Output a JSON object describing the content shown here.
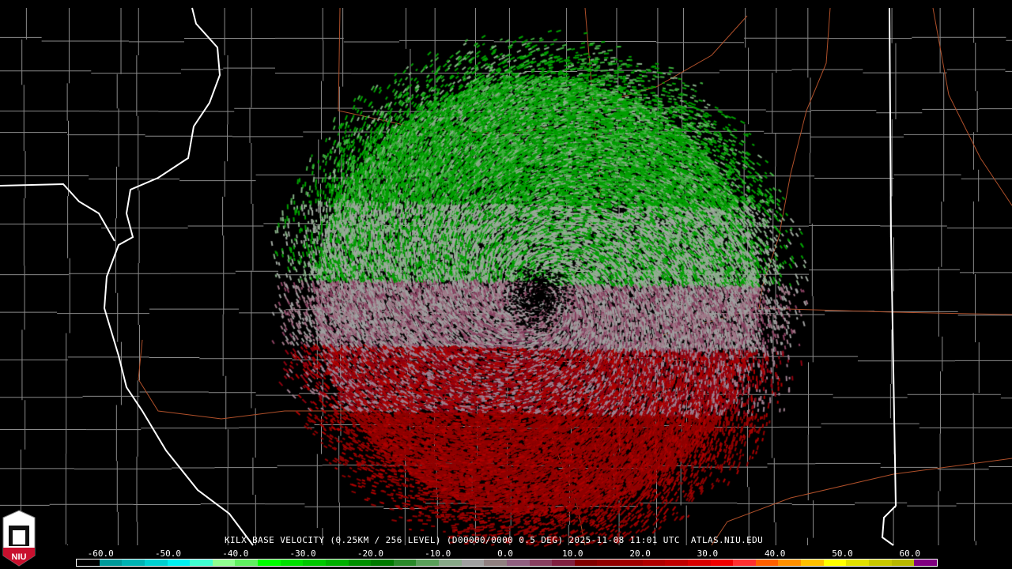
{
  "caption": "KILX BASE VELOCITY (0.25KM / 256 LEVEL) (D00000/0000 0.5 DEG) 2025-11-08 11:01 UTC  ATLAS.NIU.EDU",
  "logo": {
    "text": "NIU",
    "color": "#c8102e"
  },
  "colorbar": {
    "ticks": [
      "-60.0",
      "-50.0",
      "-40.0",
      "-30.0",
      "-20.0",
      "-10.0",
      "0.0",
      "10.0",
      "20.0",
      "30.0",
      "40.0",
      "50.0",
      "60.0"
    ],
    "tick_values": [
      -60,
      -50,
      -40,
      -30,
      -20,
      -10,
      0,
      10,
      20,
      30,
      40,
      50,
      60
    ],
    "colors": [
      "#000000",
      "#009a9a",
      "#00b3b3",
      "#00d0d0",
      "#00f0f0",
      "#40ffd0",
      "#90ff90",
      "#60f060",
      "#00ff00",
      "#00e000",
      "#00c800",
      "#00b000",
      "#009000",
      "#007a00",
      "#2a8a2a",
      "#5aa05a",
      "#88a888",
      "#a0a0a0",
      "#908080",
      "#906080",
      "#884060",
      "#802040",
      "#800000",
      "#900000",
      "#a00000",
      "#b00000",
      "#c00000",
      "#d80000",
      "#f00000",
      "#ff3030",
      "#ff6000",
      "#ff9000",
      "#ffc000",
      "#ffff00",
      "#e0e000",
      "#c8c800",
      "#b8b800",
      "#800080"
    ]
  },
  "radar": {
    "site": "KILX",
    "inbound_color": "#00a000",
    "outbound_color": "#a00000"
  }
}
